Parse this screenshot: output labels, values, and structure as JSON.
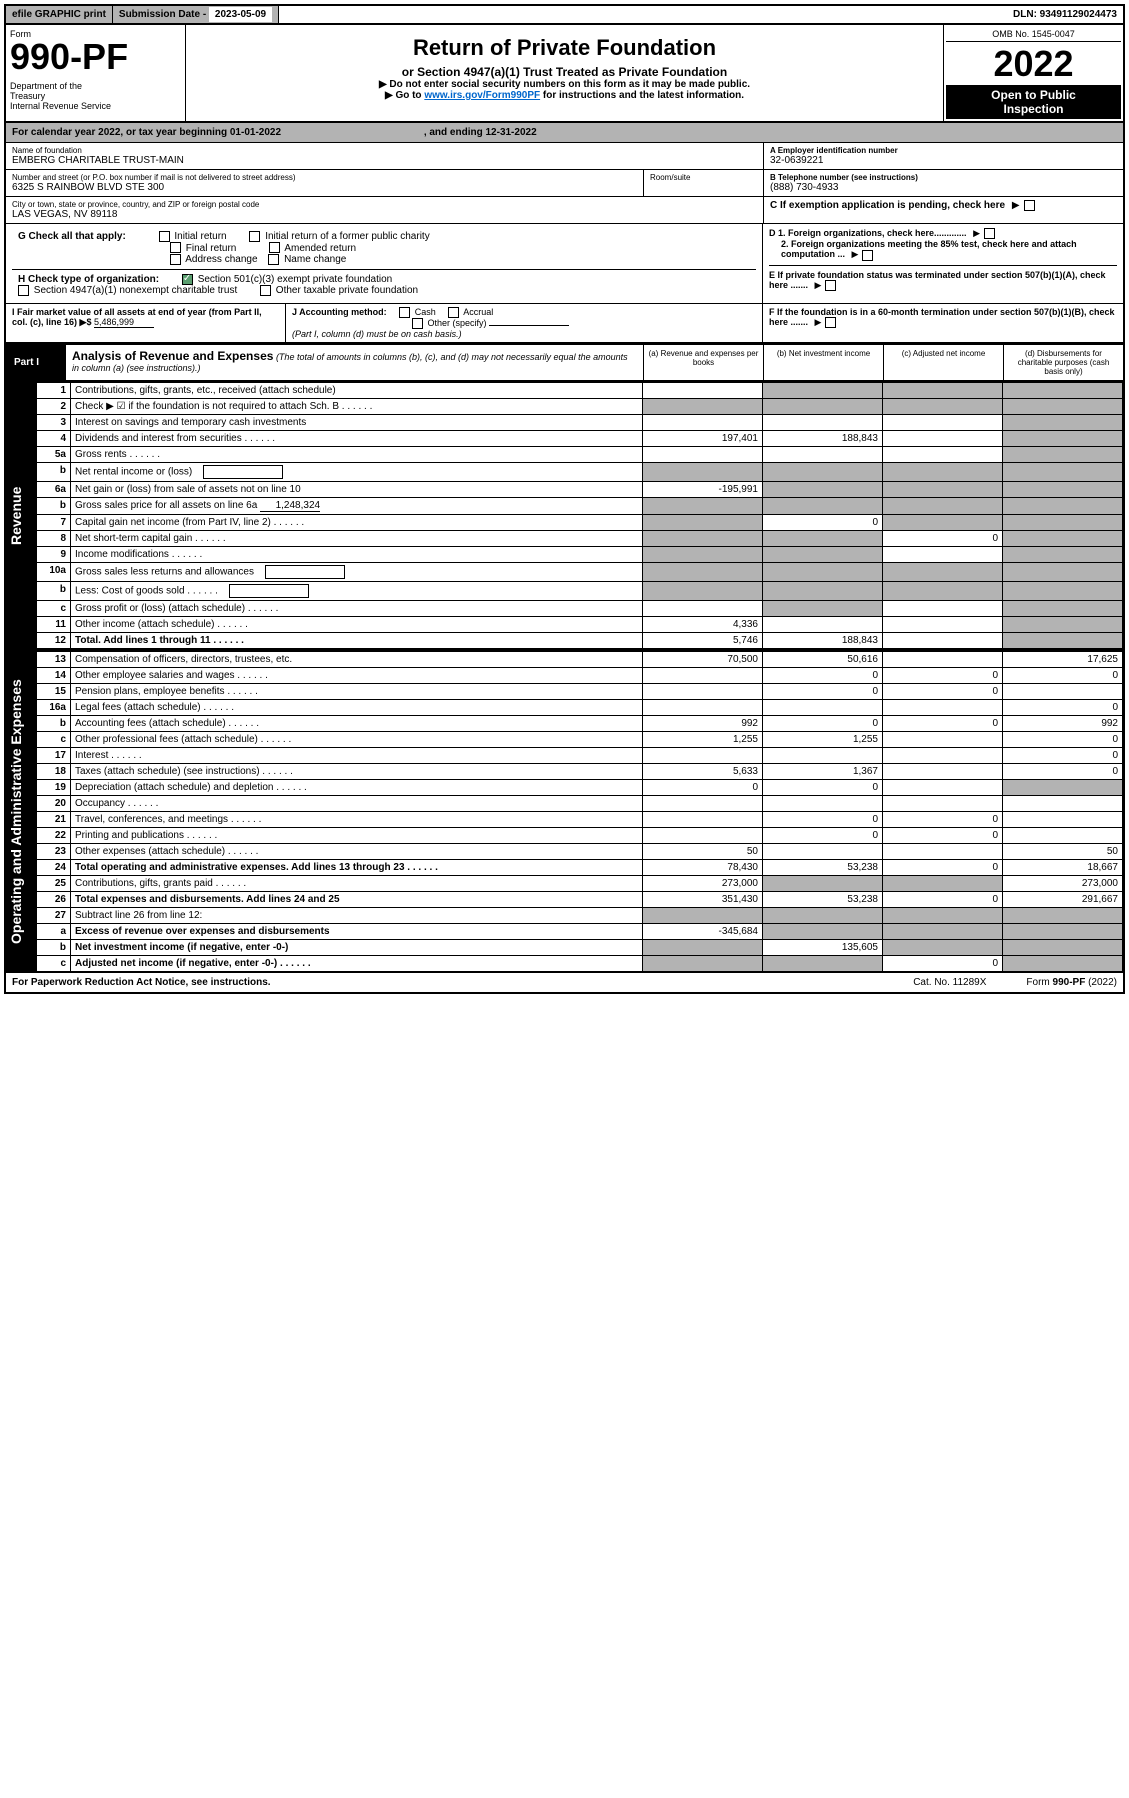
{
  "topbar": {
    "efile": "efile GRAPHIC print",
    "subdate_label": "Submission Date - ",
    "subdate": "2023-05-09",
    "dln": "DLN: 93491129024473"
  },
  "header": {
    "form_label": "Form",
    "form_num": "990-PF",
    "dept": "Department of the Treasury\nInternal Revenue Service",
    "title": "Return of Private Foundation",
    "subtitle": "or Section 4947(a)(1) Trust Treated as Private Foundation",
    "note1": "▶ Do not enter social security numbers on this form as it may be made public.",
    "note2_pre": "▶ Go to ",
    "note2_link": "www.irs.gov/Form990PF",
    "note2_post": " for instructions and the latest information.",
    "omb": "OMB No. 1545-0047",
    "year": "2022",
    "open": "Open to Public Inspection"
  },
  "cal_year": {
    "text_pre": "For calendar year 2022, or tax year beginning ",
    "begin": "01-01-2022",
    "text_mid": ", and ending ",
    "end": "12-31-2022"
  },
  "foundation": {
    "name_label": "Name of foundation",
    "name": "EMBERG CHARITABLE TRUST-MAIN",
    "addr_label": "Number and street (or P.O. box number if mail is not delivered to street address)",
    "addr": "6325 S RAINBOW BLVD STE 300",
    "room_label": "Room/suite",
    "city_label": "City or town, state or province, country, and ZIP or foreign postal code",
    "city": "LAS VEGAS, NV  89118",
    "ein_label": "A Employer identification number",
    "ein": "32-0639221",
    "phone_label": "B Telephone number (see instructions)",
    "phone": "(888) 730-4933",
    "c_label": "C If exemption application is pending, check here",
    "d1": "D 1. Foreign organizations, check here.............",
    "d2": "2. Foreign organizations meeting the 85% test, check here and attach computation ...",
    "e_label": "E  If private foundation status was terminated under section 507(b)(1)(A), check here .......",
    "f_label": "F  If the foundation is in a 60-month termination under section 507(b)(1)(B), check here .......",
    "g_label": "G Check all that apply:",
    "g_opts": [
      "Initial return",
      "Initial return of a former public charity",
      "Final return",
      "Amended return",
      "Address change",
      "Name change"
    ],
    "h_label": "H Check type of organization:",
    "h_opts": [
      "Section 501(c)(3) exempt private foundation",
      "Section 4947(a)(1) nonexempt charitable trust",
      "Other taxable private foundation"
    ],
    "i_label": "I Fair market value of all assets at end of year (from Part II, col. (c), line 16) ▶$",
    "i_val": "5,486,999",
    "j_label": "J Accounting method:",
    "j_opts": [
      "Cash",
      "Accrual",
      "Other (specify)"
    ],
    "j_note": "(Part I, column (d) must be on cash basis.)"
  },
  "part1": {
    "label": "Part I",
    "title": "Analysis of Revenue and Expenses",
    "title_note": "(The total of amounts in columns (b), (c), and (d) may not necessarily equal the amounts in column (a) (see instructions).)",
    "col_a": "(a)   Revenue and expenses per books",
    "col_b": "(b)   Net investment income",
    "col_c": "(c)   Adjusted net income",
    "col_d": "(d)   Disbursements for charitable purposes (cash basis only)"
  },
  "side_labels": {
    "revenue": "Revenue",
    "expenses": "Operating and Administrative Expenses"
  },
  "rows": [
    {
      "n": "1",
      "label": "Contributions, gifts, grants, etc., received (attach schedule)",
      "a": "",
      "b": "grey",
      "c": "grey",
      "d": "grey"
    },
    {
      "n": "2",
      "label": "Check ▶ ☑ if the foundation is not required to attach Sch. B",
      "a": "grey",
      "b": "grey",
      "c": "grey",
      "d": "grey",
      "dots": true
    },
    {
      "n": "3",
      "label": "Interest on savings and temporary cash investments",
      "a": "",
      "b": "",
      "c": "",
      "d": "grey"
    },
    {
      "n": "4",
      "label": "Dividends and interest from securities",
      "a": "197,401",
      "b": "188,843",
      "c": "",
      "d": "grey",
      "dots": true
    },
    {
      "n": "5a",
      "label": "Gross rents",
      "a": "",
      "b": "",
      "c": "",
      "d": "grey",
      "dots": true
    },
    {
      "n": "b",
      "label": "Net rental income or (loss)",
      "a": "grey",
      "b": "grey",
      "c": "grey",
      "d": "grey",
      "inline_box": true
    },
    {
      "n": "6a",
      "label": "Net gain or (loss) from sale of assets not on line 10",
      "a": "-195,991",
      "b": "grey",
      "c": "grey",
      "d": "grey"
    },
    {
      "n": "b",
      "label": "Gross sales price for all assets on line 6a",
      "a": "grey",
      "b": "grey",
      "c": "grey",
      "d": "grey",
      "inline_val": "1,248,324"
    },
    {
      "n": "7",
      "label": "Capital gain net income (from Part IV, line 2)",
      "a": "grey",
      "b": "0",
      "c": "grey",
      "d": "grey",
      "dots": true
    },
    {
      "n": "8",
      "label": "Net short-term capital gain",
      "a": "grey",
      "b": "grey",
      "c": "0",
      "d": "grey",
      "dots": true
    },
    {
      "n": "9",
      "label": "Income modifications",
      "a": "grey",
      "b": "grey",
      "c": "",
      "d": "grey",
      "dots": true
    },
    {
      "n": "10a",
      "label": "Gross sales less returns and allowances",
      "a": "grey",
      "b": "grey",
      "c": "grey",
      "d": "grey",
      "inline_box": true
    },
    {
      "n": "b",
      "label": "Less: Cost of goods sold",
      "a": "grey",
      "b": "grey",
      "c": "grey",
      "d": "grey",
      "inline_box": true,
      "dots": true
    },
    {
      "n": "c",
      "label": "Gross profit or (loss) (attach schedule)",
      "a": "",
      "b": "grey",
      "c": "",
      "d": "grey",
      "dots": true
    },
    {
      "n": "11",
      "label": "Other income (attach schedule)",
      "a": "4,336",
      "b": "",
      "c": "",
      "d": "grey",
      "dots": true
    },
    {
      "n": "12",
      "label": "Total. Add lines 1 through 11",
      "a": "5,746",
      "b": "188,843",
      "c": "",
      "d": "grey",
      "bold": true,
      "dots": true
    }
  ],
  "exp_rows": [
    {
      "n": "13",
      "label": "Compensation of officers, directors, trustees, etc.",
      "a": "70,500",
      "b": "50,616",
      "c": "",
      "d": "17,625"
    },
    {
      "n": "14",
      "label": "Other employee salaries and wages",
      "a": "",
      "b": "0",
      "c": "0",
      "d": "0",
      "dots": true
    },
    {
      "n": "15",
      "label": "Pension plans, employee benefits",
      "a": "",
      "b": "0",
      "c": "0",
      "d": "",
      "dots": true
    },
    {
      "n": "16a",
      "label": "Legal fees (attach schedule)",
      "a": "",
      "b": "",
      "c": "",
      "d": "0",
      "dots": true
    },
    {
      "n": "b",
      "label": "Accounting fees (attach schedule)",
      "a": "992",
      "b": "0",
      "c": "0",
      "d": "992",
      "dots": true
    },
    {
      "n": "c",
      "label": "Other professional fees (attach schedule)",
      "a": "1,255",
      "b": "1,255",
      "c": "",
      "d": "0",
      "dots": true
    },
    {
      "n": "17",
      "label": "Interest",
      "a": "",
      "b": "",
      "c": "",
      "d": "0",
      "dots": true
    },
    {
      "n": "18",
      "label": "Taxes (attach schedule) (see instructions)",
      "a": "5,633",
      "b": "1,367",
      "c": "",
      "d": "0",
      "dots": true
    },
    {
      "n": "19",
      "label": "Depreciation (attach schedule) and depletion",
      "a": "0",
      "b": "0",
      "c": "",
      "d": "grey",
      "dots": true
    },
    {
      "n": "20",
      "label": "Occupancy",
      "a": "",
      "b": "",
      "c": "",
      "d": "",
      "dots": true
    },
    {
      "n": "21",
      "label": "Travel, conferences, and meetings",
      "a": "",
      "b": "0",
      "c": "0",
      "d": "",
      "dots": true
    },
    {
      "n": "22",
      "label": "Printing and publications",
      "a": "",
      "b": "0",
      "c": "0",
      "d": "",
      "dots": true
    },
    {
      "n": "23",
      "label": "Other expenses (attach schedule)",
      "a": "50",
      "b": "",
      "c": "",
      "d": "50",
      "dots": true
    },
    {
      "n": "24",
      "label": "Total operating and administrative expenses. Add lines 13 through 23",
      "a": "78,430",
      "b": "53,238",
      "c": "0",
      "d": "18,667",
      "bold": true,
      "dots": true
    },
    {
      "n": "25",
      "label": "Contributions, gifts, grants paid",
      "a": "273,000",
      "b": "grey",
      "c": "grey",
      "d": "273,000",
      "dots": true
    },
    {
      "n": "26",
      "label": "Total expenses and disbursements. Add lines 24 and 25",
      "a": "351,430",
      "b": "53,238",
      "c": "0",
      "d": "291,667",
      "bold": true
    },
    {
      "n": "27",
      "label": "Subtract line 26 from line 12:",
      "a": "grey",
      "b": "grey",
      "c": "grey",
      "d": "grey"
    },
    {
      "n": "a",
      "label": "Excess of revenue over expenses and disbursements",
      "a": "-345,684",
      "b": "grey",
      "c": "grey",
      "d": "grey",
      "bold": true
    },
    {
      "n": "b",
      "label": "Net investment income (if negative, enter -0-)",
      "a": "grey",
      "b": "135,605",
      "c": "grey",
      "d": "grey",
      "bold": true
    },
    {
      "n": "c",
      "label": "Adjusted net income (if negative, enter -0-)",
      "a": "grey",
      "b": "grey",
      "c": "0",
      "d": "grey",
      "bold": true,
      "dots": true
    }
  ],
  "footer": {
    "left": "For Paperwork Reduction Act Notice, see instructions.",
    "center": "Cat. No. 11289X",
    "right": "Form 990-PF (2022)"
  },
  "colors": {
    "grey": "#b3b3b3",
    "link": "#0066cc",
    "check": "#5a9e6f"
  }
}
